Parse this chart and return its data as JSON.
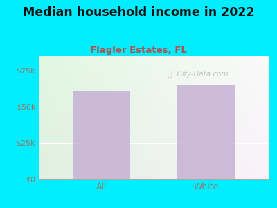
{
  "title": "Median household income in 2022",
  "subtitle": "Flagler Estates, FL",
  "categories": [
    "All",
    "White"
  ],
  "values": [
    61000,
    65000
  ],
  "bar_color": "#c4aed4",
  "background_outer": "#00eeff",
  "yticks": [
    0,
    25000,
    50000,
    75000
  ],
  "ytick_labels": [
    "$0",
    "$25k",
    "$50k",
    "$75k"
  ],
  "ylim": [
    0,
    85000
  ],
  "title_color": "#111111",
  "subtitle_color": "#b05050",
  "tick_color": "#8B7B6B",
  "watermark": "  City-Data.com",
  "title_fontsize": 12.5,
  "subtitle_fontsize": 9.5,
  "bar_alpha": 0.82
}
